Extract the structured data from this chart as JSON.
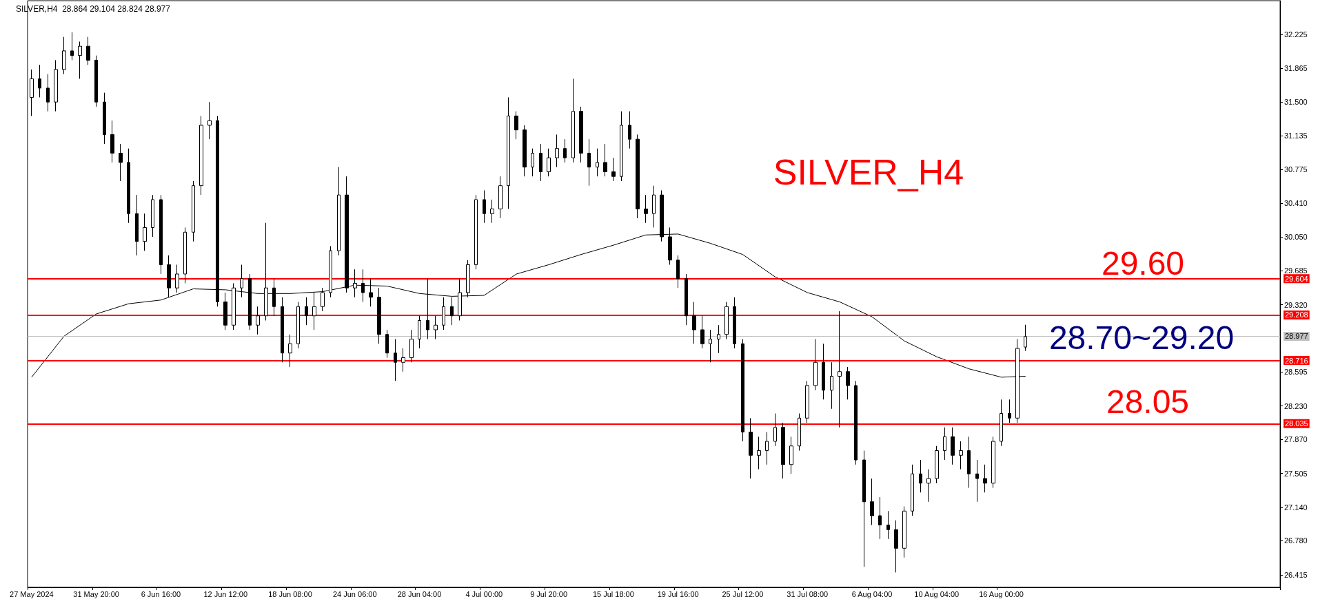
{
  "chart_data": {
    "type": "candlestick",
    "title": "SILVER,H4  28.864 29.104 28.824 28.977",
    "categories": [
      "27 May 2024",
      null,
      null,
      null,
      null,
      null,
      null,
      null,
      "31 May 20:00",
      null,
      null,
      null,
      null,
      null,
      null,
      null,
      "6 Jun 16:00",
      null,
      null,
      null,
      null,
      null,
      null,
      null,
      "12 Jun 12:00",
      null,
      null,
      null,
      null,
      null,
      null,
      null,
      "18 Jun 08:00",
      null,
      null,
      null,
      null,
      null,
      null,
      null,
      "24 Jun 06:00",
      null,
      null,
      null,
      null,
      null,
      null,
      null,
      "28 Jun 04:00",
      null,
      null,
      null,
      null,
      null,
      null,
      null,
      "4 Jul 00:00",
      null,
      null,
      null,
      null,
      null,
      null,
      null,
      "9 Jul 20:00",
      null,
      null,
      null,
      null,
      null,
      null,
      null,
      "15 Jul 18:00",
      null,
      null,
      null,
      null,
      null,
      null,
      null,
      "19 Jul 16:00",
      null,
      null,
      null,
      null,
      null,
      null,
      null,
      "25 Jul 12:00",
      null,
      null,
      null,
      null,
      null,
      null,
      null,
      "31 Jul 08:00",
      null,
      null,
      null,
      null,
      null,
      null,
      null,
      "6 Aug 04:00",
      null,
      null,
      null,
      null,
      null,
      null,
      null,
      "10 Aug 04:00",
      null,
      null,
      null,
      null,
      null,
      null,
      null,
      "16 Aug 00:00",
      null,
      null,
      null,
      null,
      null,
      null,
      null,
      null,
      null,
      null,
      null,
      null,
      null,
      null,
      null,
      null,
      null,
      null,
      null,
      null,
      null,
      null,
      null,
      null,
      null,
      null,
      null,
      null,
      null,
      null,
      null,
      null,
      null,
      null
    ],
    "ohlc": [
      [
        31.55,
        31.85,
        31.35,
        31.75
      ],
      [
        31.75,
        31.9,
        31.55,
        31.65
      ],
      [
        31.65,
        31.8,
        31.4,
        31.5
      ],
      [
        31.5,
        31.95,
        31.4,
        31.85
      ],
      [
        31.85,
        32.2,
        31.8,
        32.05
      ],
      [
        32.05,
        32.25,
        31.95,
        32.0
      ],
      [
        32.0,
        32.15,
        31.75,
        32.1
      ],
      [
        32.1,
        32.2,
        31.9,
        31.95
      ],
      [
        31.95,
        32.0,
        31.45,
        31.5
      ],
      [
        31.5,
        31.6,
        31.05,
        31.15
      ],
      [
        31.15,
        31.3,
        30.85,
        30.95
      ],
      [
        30.95,
        31.05,
        30.65,
        30.85
      ],
      [
        30.85,
        31.0,
        30.2,
        30.3
      ],
      [
        30.3,
        30.5,
        29.85,
        30.0
      ],
      [
        30.0,
        30.3,
        29.9,
        30.15
      ],
      [
        30.15,
        30.5,
        30.05,
        30.45
      ],
      [
        30.45,
        30.5,
        29.65,
        29.75
      ],
      [
        29.75,
        29.85,
        29.4,
        29.5
      ],
      [
        29.5,
        29.75,
        29.45,
        29.65
      ],
      [
        29.65,
        30.15,
        29.55,
        30.1
      ],
      [
        30.1,
        30.65,
        30.0,
        30.6
      ],
      [
        30.6,
        31.35,
        30.5,
        31.25
      ],
      [
        31.25,
        31.5,
        31.1,
        31.3
      ],
      [
        31.3,
        31.35,
        29.3,
        29.35
      ],
      [
        29.35,
        29.45,
        29.05,
        29.1
      ],
      [
        29.1,
        29.55,
        29.05,
        29.5
      ],
      [
        29.5,
        29.75,
        29.4,
        29.6
      ],
      [
        29.6,
        29.65,
        29.05,
        29.1
      ],
      [
        29.1,
        29.3,
        29.0,
        29.2
      ],
      [
        29.2,
        30.2,
        29.15,
        29.5
      ],
      [
        29.5,
        29.6,
        29.2,
        29.3
      ],
      [
        29.3,
        29.4,
        28.7,
        28.8
      ],
      [
        28.8,
        29.0,
        28.65,
        28.9
      ],
      [
        28.9,
        29.35,
        28.85,
        29.3
      ],
      [
        29.3,
        29.4,
        29.1,
        29.2
      ],
      [
        29.2,
        29.45,
        29.05,
        29.3
      ],
      [
        29.3,
        29.5,
        29.25,
        29.45
      ],
      [
        29.45,
        29.95,
        29.4,
        29.9
      ],
      [
        29.9,
        30.8,
        29.85,
        30.5
      ],
      [
        30.5,
        30.7,
        29.45,
        29.5
      ],
      [
        29.5,
        29.7,
        29.4,
        29.55
      ],
      [
        29.55,
        29.7,
        29.35,
        29.45
      ],
      [
        29.45,
        29.6,
        29.3,
        29.4
      ],
      [
        29.4,
        29.5,
        28.9,
        29.0
      ],
      [
        29.0,
        29.05,
        28.75,
        28.8
      ],
      [
        28.8,
        28.95,
        28.5,
        28.7
      ],
      [
        28.7,
        28.85,
        28.6,
        28.75
      ],
      [
        28.75,
        29.05,
        28.7,
        28.95
      ],
      [
        28.95,
        29.2,
        28.85,
        29.15
      ],
      [
        29.15,
        29.6,
        28.95,
        29.05
      ],
      [
        29.05,
        29.2,
        28.95,
        29.1
      ],
      [
        29.1,
        29.4,
        29.05,
        29.3
      ],
      [
        29.3,
        29.4,
        29.1,
        29.2
      ],
      [
        29.2,
        29.6,
        29.15,
        29.45
      ],
      [
        29.45,
        29.8,
        29.4,
        29.75
      ],
      [
        29.75,
        30.5,
        29.7,
        30.45
      ],
      [
        30.45,
        30.55,
        30.2,
        30.3
      ],
      [
        30.3,
        30.45,
        30.2,
        30.35
      ],
      [
        30.35,
        30.7,
        30.25,
        30.6
      ],
      [
        30.6,
        31.55,
        30.35,
        31.35
      ],
      [
        31.35,
        31.4,
        31.1,
        31.2
      ],
      [
        31.2,
        31.25,
        30.7,
        30.8
      ],
      [
        30.8,
        31.0,
        30.7,
        30.95
      ],
      [
        30.95,
        31.05,
        30.65,
        30.75
      ],
      [
        30.75,
        31.0,
        30.7,
        30.9
      ],
      [
        30.9,
        31.15,
        30.8,
        31.0
      ],
      [
        31.0,
        31.1,
        30.85,
        30.9
      ],
      [
        30.9,
        31.75,
        30.85,
        31.4
      ],
      [
        31.4,
        31.45,
        30.85,
        30.95
      ],
      [
        30.95,
        31.1,
        30.6,
        30.8
      ],
      [
        30.8,
        31.0,
        30.7,
        30.85
      ],
      [
        30.85,
        31.05,
        30.7,
        30.75
      ],
      [
        30.75,
        30.9,
        30.65,
        30.7
      ],
      [
        30.7,
        31.4,
        30.65,
        31.25
      ],
      [
        31.25,
        31.4,
        31.0,
        31.1
      ],
      [
        31.1,
        31.15,
        30.25,
        30.35
      ],
      [
        30.35,
        30.5,
        30.2,
        30.3
      ],
      [
        30.3,
        30.6,
        30.15,
        30.5
      ],
      [
        30.5,
        30.55,
        30.0,
        30.05
      ],
      [
        30.05,
        30.15,
        29.75,
        29.8
      ],
      [
        29.8,
        29.85,
        29.5,
        29.6
      ],
      [
        29.6,
        29.65,
        29.1,
        29.2
      ],
      [
        29.2,
        29.35,
        28.9,
        29.05
      ],
      [
        29.05,
        29.2,
        28.85,
        28.9
      ],
      [
        28.9,
        29.05,
        28.7,
        28.95
      ],
      [
        28.95,
        29.1,
        28.8,
        29.0
      ],
      [
        29.0,
        29.35,
        28.95,
        29.3
      ],
      [
        29.3,
        29.4,
        28.85,
        28.9
      ],
      [
        28.9,
        28.95,
        27.85,
        27.95
      ],
      [
        27.95,
        28.1,
        27.45,
        27.7
      ],
      [
        27.7,
        27.9,
        27.55,
        27.75
      ],
      [
        27.75,
        27.95,
        27.6,
        27.85
      ],
      [
        27.85,
        28.15,
        27.8,
        28.0
      ],
      [
        28.0,
        28.05,
        27.45,
        27.6
      ],
      [
        27.6,
        27.9,
        27.5,
        27.8
      ],
      [
        27.8,
        28.15,
        27.75,
        28.1
      ],
      [
        28.1,
        28.5,
        28.05,
        28.45
      ],
      [
        28.45,
        28.95,
        28.4,
        28.7
      ],
      [
        28.7,
        28.9,
        28.3,
        28.4
      ],
      [
        28.4,
        28.7,
        28.2,
        28.55
      ],
      [
        28.55,
        29.25,
        28.0,
        28.6
      ],
      [
        28.6,
        28.65,
        28.3,
        28.45
      ],
      [
        28.45,
        28.5,
        27.6,
        27.65
      ],
      [
        27.65,
        27.75,
        26.5,
        27.2
      ],
      [
        27.2,
        27.45,
        26.95,
        27.05
      ],
      [
        27.05,
        27.25,
        26.8,
        26.95
      ],
      [
        26.95,
        27.1,
        26.8,
        26.9
      ],
      [
        26.9,
        27.0,
        26.44,
        26.7
      ],
      [
        26.7,
        27.15,
        26.6,
        27.1
      ],
      [
        27.1,
        27.6,
        27.05,
        27.5
      ],
      [
        27.5,
        27.65,
        27.3,
        27.4
      ],
      [
        27.4,
        27.55,
        27.2,
        27.45
      ],
      [
        27.45,
        27.8,
        27.4,
        27.75
      ],
      [
        27.75,
        28.0,
        27.65,
        27.9
      ],
      [
        27.9,
        28.0,
        27.6,
        27.7
      ],
      [
        27.7,
        27.85,
        27.55,
        27.75
      ],
      [
        27.75,
        27.9,
        27.35,
        27.5
      ],
      [
        27.5,
        27.65,
        27.2,
        27.45
      ],
      [
        27.45,
        27.6,
        27.3,
        27.4
      ],
      [
        27.4,
        27.9,
        27.35,
        27.85
      ],
      [
        27.85,
        28.3,
        27.8,
        28.15
      ],
      [
        28.15,
        28.3,
        28.05,
        28.1
      ],
      [
        28.1,
        28.95,
        28.05,
        28.85
      ],
      [
        28.864,
        29.104,
        28.824,
        28.977
      ],
      null,
      null,
      null,
      null,
      null,
      null,
      null,
      null,
      null,
      null,
      null,
      null,
      null,
      null,
      null,
      null,
      null,
      null,
      null,
      null,
      null,
      null,
      null,
      null,
      null,
      null,
      null,
      null,
      null,
      null,
      null
    ],
    "series": [
      {
        "type": "line",
        "color": "#000000",
        "values": [
          28.54,
          null,
          null,
          null,
          28.98,
          null,
          null,
          null,
          29.22,
          null,
          null,
          null,
          29.33,
          null,
          null,
          null,
          29.37,
          null,
          null,
          null,
          29.49,
          null,
          null,
          null,
          29.48,
          null,
          null,
          null,
          29.44,
          null,
          null,
          null,
          29.44,
          null,
          null,
          null,
          29.46,
          null,
          null,
          null,
          29.53,
          null,
          null,
          null,
          29.52,
          null,
          null,
          null,
          29.44,
          null,
          null,
          null,
          29.41,
          null,
          null,
          null,
          29.42,
          null,
          null,
          null,
          29.65,
          null,
          null,
          null,
          29.75,
          null,
          null,
          null,
          29.86,
          null,
          null,
          null,
          29.96,
          null,
          null,
          null,
          30.07,
          null,
          null,
          null,
          30.08,
          null,
          null,
          null,
          29.98,
          null,
          null,
          null,
          29.86,
          null,
          null,
          null,
          29.62,
          null,
          null,
          null,
          29.45,
          null,
          null,
          null,
          29.35,
          null,
          null,
          null,
          29.19,
          null,
          null,
          null,
          28.93,
          null,
          null,
          null,
          28.76,
          null,
          null,
          null,
          28.63,
          null,
          null,
          null,
          28.54,
          null,
          null,
          28.55,
          null,
          null,
          null,
          null,
          null,
          null,
          null,
          null,
          null,
          null,
          null,
          null,
          null,
          null,
          null,
          null,
          null,
          null,
          null,
          null,
          null,
          null,
          null,
          null,
          null,
          null,
          null,
          null,
          null,
          null,
          null
        ]
      }
    ],
    "ylim": [
      26.28,
      32.59
    ],
    "yticks": [
      {
        "value": 26.415,
        "label": "26.415"
      },
      {
        "value": 26.78,
        "label": "26.780"
      },
      {
        "value": 27.14,
        "label": "27.140"
      },
      {
        "value": 27.505,
        "label": "27.505"
      },
      {
        "value": 27.87,
        "label": "27.870"
      },
      {
        "value": 28.23,
        "label": "28.230"
      },
      {
        "value": 28.595,
        "label": "28.595"
      },
      {
        "value": 29.32,
        "label": "29.320"
      },
      {
        "value": 29.685,
        "label": "29.685"
      },
      {
        "value": 30.05,
        "label": "30.050"
      },
      {
        "value": 30.41,
        "label": "30.410"
      },
      {
        "value": 30.775,
        "label": "30.775"
      },
      {
        "value": 31.135,
        "label": "31.135"
      },
      {
        "value": 31.5,
        "label": "31.500"
      },
      {
        "value": 31.865,
        "label": "31.865"
      },
      {
        "value": 32.225,
        "label": "32.225"
      }
    ],
    "ref_lines": [
      {
        "axis": "y",
        "value": 29.604,
        "label": "29.604",
        "color": "#ff0000"
      },
      {
        "axis": "y",
        "value": 29.208,
        "label": "29.208",
        "color": "#ff0000"
      },
      {
        "axis": "y",
        "value": 28.716,
        "label": "28.716",
        "color": "#ff0000"
      },
      {
        "axis": "y",
        "value": 28.035,
        "label": "28.035",
        "color": "#ff0000"
      },
      {
        "axis": "y",
        "value": 28.977,
        "label": "28.977",
        "color": "#c0c0c0"
      }
    ],
    "annotations": [
      "SILVER_H4",
      "29.60",
      "28.70~29.20",
      "28.05"
    ],
    "grid": false
  }
}
